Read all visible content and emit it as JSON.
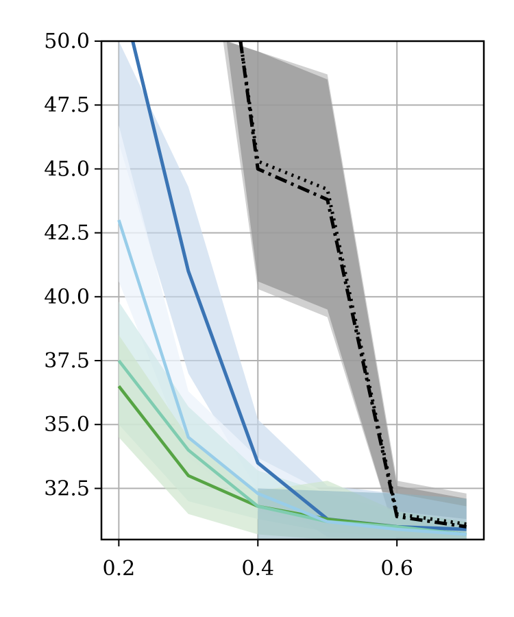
{
  "chart_data": {
    "type": "line",
    "title": "",
    "xlabel": "",
    "ylabel": "",
    "xlim": [
      0.175,
      0.725
    ],
    "ylim": [
      30.5,
      50.0
    ],
    "x_ticks": [
      0.2,
      0.4,
      0.6
    ],
    "x_tick_labels": [
      "0.2",
      "0.4",
      "0.6"
    ],
    "y_ticks": [
      32.5,
      35.0,
      37.5,
      40.0,
      42.5,
      45.0,
      47.5,
      50.0
    ],
    "y_tick_labels": [
      "32.5",
      "35.0",
      "37.5",
      "40.0",
      "42.5",
      "45.0",
      "47.5",
      "50.0"
    ],
    "grid": true,
    "x": [
      0.2,
      0.3,
      0.4,
      0.5,
      0.6,
      0.7
    ],
    "bands": [
      {
        "color": "#a9a9a9",
        "opacity": 0.55,
        "x": [
          0.35,
          0.4,
          0.5,
          0.6,
          0.7
        ],
        "upper": [
          50.0,
          49.6,
          48.7,
          32.8,
          32.3
        ],
        "lower": [
          50.0,
          40.3,
          39.2,
          30.5,
          30.5
        ]
      },
      {
        "color": "#9a9a9a",
        "opacity": 0.8,
        "x": [
          0.355,
          0.4,
          0.5,
          0.6,
          0.7
        ],
        "upper": [
          50.0,
          49.6,
          48.5,
          32.6,
          32.1
        ],
        "lower": [
          50.0,
          40.6,
          39.5,
          30.5,
          30.5
        ]
      },
      {
        "color": "#c6d8ec",
        "opacity": 0.65,
        "x": [
          0.2,
          0.3,
          0.4,
          0.5,
          0.6,
          0.7
        ],
        "upper": [
          50.0,
          44.3,
          35.2,
          32.6,
          32.3,
          31.8
        ],
        "lower": [
          46.0,
          37.0,
          32.4,
          30.6,
          30.5,
          30.5
        ]
      },
      {
        "color": "#eef4fb",
        "opacity": 0.8,
        "x": [
          0.2,
          0.3,
          0.4,
          0.5,
          0.6,
          0.7
        ],
        "upper": [
          46.7,
          36.3,
          33.7,
          32.3,
          31.6,
          31.3
        ],
        "lower": [
          40.6,
          33.7,
          31.6,
          30.9,
          30.6,
          30.5
        ]
      },
      {
        "color": "#cfe8e8",
        "opacity": 0.7,
        "x": [
          0.2,
          0.3,
          0.4,
          0.5,
          0.6,
          0.7
        ],
        "upper": [
          39.8,
          35.7,
          33.2,
          32.3,
          31.6,
          31.2
        ],
        "lower": [
          35.0,
          32.0,
          31.3,
          30.8,
          30.6,
          30.5
        ]
      },
      {
        "color": "#cfe6cd",
        "opacity": 0.7,
        "x": [
          0.2,
          0.3,
          0.4,
          0.5,
          0.6,
          0.7
        ],
        "upper": [
          38.5,
          34.5,
          32.4,
          32.8,
          31.6,
          31.2
        ],
        "lower": [
          34.5,
          31.5,
          30.7,
          30.5,
          30.5,
          30.5
        ]
      },
      {
        "color": "#8ab4c3",
        "opacity": 0.55,
        "x": [
          0.4,
          0.5,
          0.6,
          0.7
        ],
        "upper": [
          32.5,
          32.4,
          32.3,
          32.1
        ],
        "lower": [
          30.5,
          30.5,
          30.5,
          30.5
        ]
      }
    ],
    "series": [
      {
        "color": "#3a74b4",
        "width": 5,
        "dash": "",
        "x": [
          0.2,
          0.22,
          0.3,
          0.4,
          0.5,
          0.6,
          0.7
        ],
        "values": [
          52.0,
          50.0,
          41.0,
          33.5,
          31.3,
          31.0,
          30.9
        ]
      },
      {
        "color": "#56a444",
        "width": 4.5,
        "dash": "",
        "x": [
          0.2,
          0.3,
          0.4,
          0.5,
          0.6,
          0.7
        ],
        "values": [
          36.5,
          33.0,
          31.8,
          31.3,
          31.0,
          30.7
        ]
      },
      {
        "color": "#7fccb0",
        "width": 4.5,
        "dash": "",
        "x": [
          0.2,
          0.3,
          0.4,
          0.5,
          0.6,
          0.7
        ],
        "values": [
          37.5,
          34.0,
          31.8,
          31.2,
          31.0,
          30.7
        ]
      },
      {
        "color": "#98cde9",
        "width": 4.5,
        "dash": "",
        "x": [
          0.2,
          0.3,
          0.4,
          0.5,
          0.6,
          0.7
        ],
        "values": [
          43.0,
          34.5,
          32.3,
          31.2,
          30.9,
          30.7
        ]
      },
      {
        "color": "#000000",
        "width": 5,
        "dash": "3 7",
        "x": [
          0.375,
          0.4,
          0.5,
          0.6,
          0.7
        ],
        "values": [
          50.0,
          45.3,
          44.2,
          31.5,
          31.1
        ]
      },
      {
        "color": "#000000",
        "width": 5,
        "dash": "18 7 4 7",
        "x": [
          0.375,
          0.4,
          0.5,
          0.6,
          0.7
        ],
        "values": [
          50.0,
          45.0,
          43.8,
          31.4,
          31.0
        ]
      }
    ]
  }
}
